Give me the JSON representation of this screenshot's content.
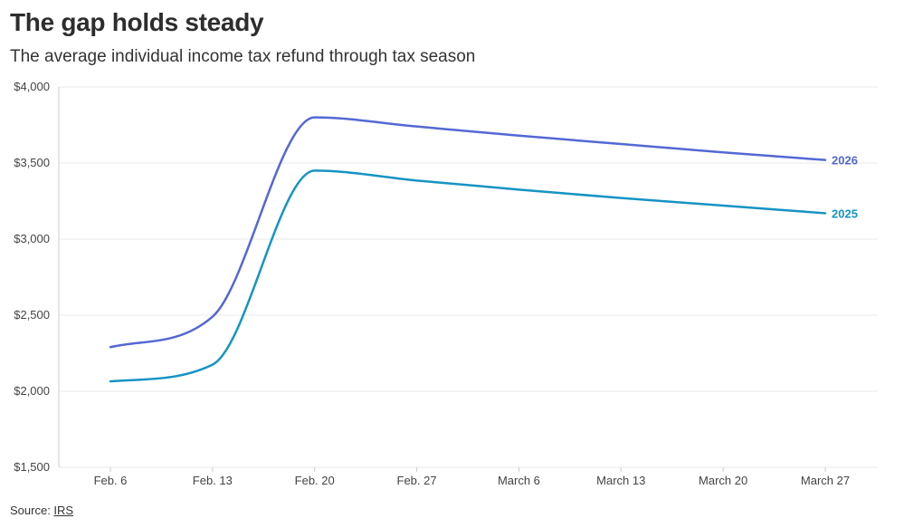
{
  "title": "The gap holds steady",
  "subtitle": "The average individual income tax refund through tax season",
  "source": {
    "prefix": "Source: ",
    "link_text": "IRS"
  },
  "colors": {
    "series_2026": "#5468d4",
    "series_2025": "#1594c4",
    "grid": "#e8e8e8",
    "axis": "#cccccc"
  },
  "chart_data": {
    "type": "line",
    "title": "The gap holds steady",
    "subtitle": "The average individual income tax refund through tax season",
    "x_labels": [
      "Feb. 6",
      "Feb. 13",
      "Feb. 20",
      "Feb. 27",
      "March 6",
      "March 13",
      "March 20",
      "March 27"
    ],
    "y_ticks": [
      "$4,000",
      "$3,500",
      "$3,000",
      "$2,500",
      "$2,000",
      "$1,500"
    ],
    "y_tick_values": [
      4000,
      3500,
      3000,
      2500,
      2000,
      1500
    ],
    "ylim": [
      1500,
      4000
    ],
    "grid": true,
    "series": [
      {
        "name": "2026",
        "color": "#5468d4",
        "values": [
          2290,
          2490,
          3800,
          3740,
          3680,
          3625,
          3570,
          3520
        ]
      },
      {
        "name": "2025",
        "color": "#1594c4",
        "values": [
          2065,
          2175,
          3450,
          3385,
          3325,
          3270,
          3220,
          3170
        ]
      }
    ]
  }
}
